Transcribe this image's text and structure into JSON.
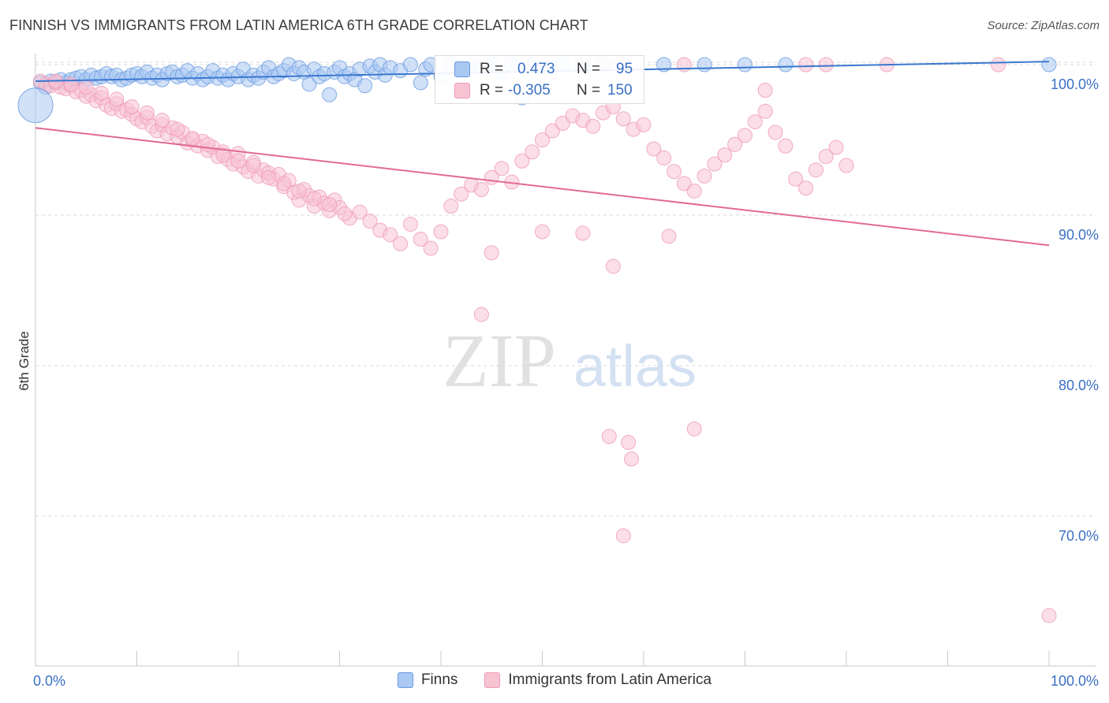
{
  "header": {
    "title": "FINNISH VS IMMIGRANTS FROM LATIN AMERICA 6TH GRADE CORRELATION CHART",
    "source": "Source: ZipAtlas.com"
  },
  "watermark": {
    "zip": "ZIP",
    "atlas": "atlas"
  },
  "stats": [
    {
      "r_label": "R =",
      "r_value": "0.473",
      "n_label": "N =",
      "n_value": "95",
      "color": "#6a9be0",
      "fill": "#a9c8f2"
    },
    {
      "r_label": "R =",
      "r_value": "-0.305",
      "n_label": "N =",
      "n_value": "150",
      "color": "#ef9ab6",
      "fill": "#f7c3d3"
    }
  ],
  "legend": [
    {
      "label": "Finns",
      "color": "#a9c8f2",
      "border": "#6a9be0"
    },
    {
      "label": "Immigrants from Latin America",
      "color": "#f7c3d3",
      "border": "#ef9ab6"
    }
  ],
  "chart_data": {
    "type": "scatter",
    "title": "FINNISH VS IMMIGRANTS FROM LATIN AMERICA 6TH GRADE CORRELATION CHART",
    "xlabel": "",
    "ylabel": "6th Grade",
    "xlim": [
      0,
      100
    ],
    "ylim": [
      62,
      101
    ],
    "x_tick_labels": [
      "0.0%",
      "100.0%"
    ],
    "y_ticks": [
      70,
      80,
      90,
      100
    ],
    "y_tick_labels": [
      "70.0%",
      "80.0%",
      "90.0%",
      "100.0%"
    ],
    "grid": true,
    "legend_position": "bottom",
    "series": [
      {
        "name": "Finns",
        "color": "#6a9be0",
        "fill": "#a9c8f2",
        "trend": {
          "x": [
            0,
            100
          ],
          "y": [
            98.9,
            100.2
          ]
        },
        "points": [
          [
            0.5,
            98.8
          ],
          [
            1.0,
            98.5
          ],
          [
            1.5,
            98.9
          ],
          [
            2.0,
            98.8
          ],
          [
            2.5,
            99.0
          ],
          [
            3.0,
            98.8
          ],
          [
            3.5,
            99.0
          ],
          [
            4.0,
            99.1
          ],
          [
            4.5,
            99.2
          ],
          [
            5.0,
            99.0
          ],
          [
            5.5,
            99.3
          ],
          [
            6.0,
            99.1
          ],
          [
            6.5,
            99.2
          ],
          [
            7.0,
            99.4
          ],
          [
            7.5,
            99.2
          ],
          [
            8.0,
            99.3
          ],
          [
            8.5,
            99.0
          ],
          [
            9.0,
            99.1
          ],
          [
            9.5,
            99.3
          ],
          [
            10.0,
            99.4
          ],
          [
            10.5,
            99.2
          ],
          [
            11.0,
            99.5
          ],
          [
            11.5,
            99.1
          ],
          [
            12.0,
            99.3
          ],
          [
            12.5,
            99.0
          ],
          [
            13.0,
            99.4
          ],
          [
            13.5,
            99.5
          ],
          [
            14.0,
            99.2
          ],
          [
            14.5,
            99.3
          ],
          [
            15.0,
            99.6
          ],
          [
            15.5,
            99.1
          ],
          [
            16.0,
            99.4
          ],
          [
            16.5,
            99.0
          ],
          [
            17.0,
            99.2
          ],
          [
            17.5,
            99.6
          ],
          [
            18.0,
            99.1
          ],
          [
            18.5,
            99.3
          ],
          [
            19.0,
            99.0
          ],
          [
            19.5,
            99.4
          ],
          [
            20.0,
            99.2
          ],
          [
            20.5,
            99.7
          ],
          [
            21.0,
            99.0
          ],
          [
            21.5,
            99.3
          ],
          [
            22.0,
            99.1
          ],
          [
            22.5,
            99.5
          ],
          [
            23.0,
            99.8
          ],
          [
            23.5,
            99.2
          ],
          [
            24.0,
            99.4
          ],
          [
            24.5,
            99.6
          ],
          [
            25.0,
            100.0
          ],
          [
            25.5,
            99.4
          ],
          [
            26.0,
            99.8
          ],
          [
            26.5,
            99.5
          ],
          [
            27.0,
            98.7
          ],
          [
            27.5,
            99.7
          ],
          [
            28.0,
            99.2
          ],
          [
            28.5,
            99.4
          ],
          [
            29.0,
            98.0
          ],
          [
            29.5,
            99.5
          ],
          [
            30.0,
            99.8
          ],
          [
            30.5,
            99.2
          ],
          [
            31.0,
            99.4
          ],
          [
            31.5,
            99.0
          ],
          [
            32.0,
            99.7
          ],
          [
            32.5,
            98.6
          ],
          [
            33.0,
            99.9
          ],
          [
            33.5,
            99.5
          ],
          [
            34.0,
            100.0
          ],
          [
            34.5,
            99.3
          ],
          [
            35.0,
            99.8
          ],
          [
            36.0,
            99.6
          ],
          [
            37.0,
            100.0
          ],
          [
            38.0,
            98.8
          ],
          [
            38.5,
            99.7
          ],
          [
            39.0,
            100.0
          ],
          [
            40.0,
            99.2
          ],
          [
            41.0,
            100.0
          ],
          [
            42.0,
            99.6
          ],
          [
            43.0,
            100.0
          ],
          [
            44.0,
            99.8
          ],
          [
            45.0,
            100.0
          ],
          [
            46.0,
            99.5
          ],
          [
            47.0,
            100.0
          ],
          [
            48.0,
            97.8
          ],
          [
            49.0,
            100.0
          ],
          [
            50.0,
            99.8
          ],
          [
            52.0,
            100.0
          ],
          [
            54.0,
            100.0
          ],
          [
            56.0,
            100.0
          ],
          [
            58.0,
            100.0
          ],
          [
            62.0,
            100.0
          ],
          [
            66.0,
            100.0
          ],
          [
            70.0,
            100.0
          ],
          [
            74.0,
            100.0
          ],
          [
            100.0,
            100.0
          ]
        ]
      },
      {
        "name": "Immigrants from Latin America",
        "color": "#ef9ab6",
        "fill": "#f7c3d3",
        "trend": {
          "x": [
            0,
            100
          ],
          "y": [
            95.8,
            88.0
          ]
        },
        "points": [
          [
            0.5,
            98.9
          ],
          [
            1.0,
            98.7
          ],
          [
            1.5,
            98.6
          ],
          [
            2.0,
            98.8
          ],
          [
            2.5,
            98.5
          ],
          [
            3.0,
            98.4
          ],
          [
            3.5,
            98.6
          ],
          [
            4.0,
            98.2
          ],
          [
            4.5,
            98.3
          ],
          [
            5.0,
            97.9
          ],
          [
            5.5,
            98.0
          ],
          [
            6.0,
            97.6
          ],
          [
            6.5,
            97.8
          ],
          [
            7.0,
            97.3
          ],
          [
            7.5,
            97.1
          ],
          [
            8.0,
            97.4
          ],
          [
            8.5,
            96.9
          ],
          [
            9.0,
            97.0
          ],
          [
            9.5,
            96.7
          ],
          [
            10.0,
            96.4
          ],
          [
            10.5,
            96.2
          ],
          [
            11.0,
            96.5
          ],
          [
            11.5,
            95.9
          ],
          [
            12.0,
            95.6
          ],
          [
            12.5,
            96.0
          ],
          [
            13.0,
            95.4
          ],
          [
            13.5,
            95.8
          ],
          [
            14.0,
            95.2
          ],
          [
            14.5,
            95.5
          ],
          [
            15.0,
            94.8
          ],
          [
            15.5,
            95.0
          ],
          [
            16.0,
            94.6
          ],
          [
            16.5,
            94.9
          ],
          [
            17.0,
            94.3
          ],
          [
            17.5,
            94.5
          ],
          [
            18.0,
            93.9
          ],
          [
            18.5,
            94.2
          ],
          [
            19.0,
            93.7
          ],
          [
            19.5,
            93.4
          ],
          [
            20.0,
            94.1
          ],
          [
            20.5,
            93.2
          ],
          [
            21.0,
            92.9
          ],
          [
            21.5,
            93.5
          ],
          [
            22.0,
            92.6
          ],
          [
            22.5,
            93.0
          ],
          [
            23.0,
            92.8
          ],
          [
            23.5,
            92.4
          ],
          [
            24.0,
            92.7
          ],
          [
            24.5,
            91.9
          ],
          [
            25.0,
            92.3
          ],
          [
            25.5,
            91.5
          ],
          [
            26.0,
            91.0
          ],
          [
            26.5,
            91.7
          ],
          [
            27.0,
            91.3
          ],
          [
            27.5,
            90.6
          ],
          [
            28.0,
            91.2
          ],
          [
            28.5,
            90.8
          ],
          [
            29.0,
            90.3
          ],
          [
            29.5,
            91.0
          ],
          [
            30.0,
            90.5
          ],
          [
            31.0,
            89.8
          ],
          [
            32.0,
            90.2
          ],
          [
            33.0,
            89.6
          ],
          [
            34.0,
            89.0
          ],
          [
            35.0,
            88.7
          ],
          [
            36.0,
            88.1
          ],
          [
            37.0,
            89.4
          ],
          [
            38.0,
            88.4
          ],
          [
            39.0,
            87.8
          ],
          [
            40.0,
            88.9
          ],
          [
            41.0,
            90.6
          ],
          [
            42.0,
            91.4
          ],
          [
            43.0,
            92.0
          ],
          [
            44.0,
            91.7
          ],
          [
            45.0,
            92.5
          ],
          [
            46.0,
            93.1
          ],
          [
            47.0,
            92.2
          ],
          [
            48.0,
            93.6
          ],
          [
            49.0,
            94.2
          ],
          [
            50.0,
            95.0
          ],
          [
            51.0,
            95.6
          ],
          [
            52.0,
            96.1
          ],
          [
            53.0,
            96.6
          ],
          [
            54.0,
            96.3
          ],
          [
            55.0,
            95.9
          ],
          [
            56.0,
            96.8
          ],
          [
            57.0,
            97.2
          ],
          [
            58.0,
            96.4
          ],
          [
            59.0,
            95.7
          ],
          [
            60.0,
            96.0
          ],
          [
            61.0,
            94.4
          ],
          [
            62.0,
            93.8
          ],
          [
            63.0,
            92.9
          ],
          [
            64.0,
            92.1
          ],
          [
            65.0,
            91.6
          ],
          [
            66.0,
            92.6
          ],
          [
            67.0,
            93.4
          ],
          [
            68.0,
            94.0
          ],
          [
            69.0,
            94.7
          ],
          [
            70.0,
            95.3
          ],
          [
            71.0,
            96.2
          ],
          [
            72.0,
            96.9
          ],
          [
            73.0,
            95.5
          ],
          [
            74.0,
            94.6
          ],
          [
            75.0,
            92.4
          ],
          [
            76.0,
            91.8
          ],
          [
            77.0,
            93.0
          ],
          [
            78.0,
            93.9
          ],
          [
            79.0,
            94.5
          ],
          [
            80.0,
            93.3
          ],
          [
            2.0,
            98.9
          ],
          [
            3.5,
            98.7
          ],
          [
            5.0,
            98.5
          ],
          [
            6.5,
            98.1
          ],
          [
            8.0,
            97.7
          ],
          [
            9.5,
            97.2
          ],
          [
            11.0,
            96.8
          ],
          [
            12.5,
            96.3
          ],
          [
            14.0,
            95.7
          ],
          [
            15.5,
            95.1
          ],
          [
            17.0,
            94.7
          ],
          [
            18.5,
            94.0
          ],
          [
            20.0,
            93.6
          ],
          [
            21.5,
            93.3
          ],
          [
            23.0,
            92.5
          ],
          [
            24.5,
            92.1
          ],
          [
            26.0,
            91.6
          ],
          [
            27.5,
            91.1
          ],
          [
            29.0,
            90.7
          ],
          [
            30.5,
            90.1
          ],
          [
            45.0,
            87.5
          ],
          [
            50.0,
            88.9
          ],
          [
            54.0,
            88.8
          ],
          [
            57.0,
            86.6
          ],
          [
            62.5,
            88.6
          ],
          [
            72.0,
            98.3
          ],
          [
            76.0,
            100.0
          ],
          [
            78.0,
            100.0
          ],
          [
            84.0,
            100.0
          ],
          [
            95.0,
            100.0
          ],
          [
            56.0,
            100.0
          ],
          [
            64.0,
            100.0
          ],
          [
            57.5,
            100.0
          ],
          [
            44.0,
            83.4
          ],
          [
            56.6,
            75.3
          ],
          [
            58.5,
            74.9
          ],
          [
            58.8,
            73.8
          ],
          [
            65.0,
            75.8
          ],
          [
            58.0,
            68.7
          ],
          [
            100.0,
            63.4
          ]
        ]
      }
    ]
  }
}
